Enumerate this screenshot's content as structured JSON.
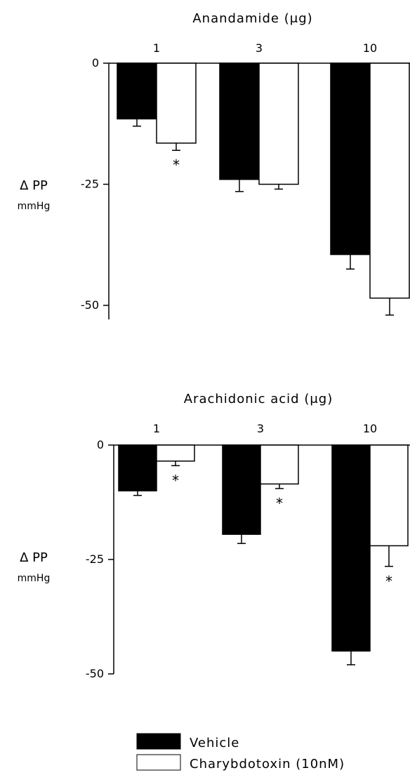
{
  "chart_data": [
    {
      "type": "bar",
      "title": "Anandamide (μg)",
      "ylabel": "Δ PP",
      "yunit": "mmHg",
      "categories": [
        "1",
        "3",
        "10"
      ],
      "ylim": [
        -50,
        0
      ],
      "yticks": [
        "0",
        "-25",
        "-50"
      ],
      "series": [
        {
          "name": "Vehicle",
          "color": "#000000",
          "values": [
            -11.5,
            -24,
            -39.5
          ],
          "errors": [
            1.5,
            2.5,
            3
          ]
        },
        {
          "name": "Charybdotoxin (10nM)",
          "color": "#ffffff",
          "values": [
            -16.5,
            -25,
            -48.5
          ],
          "errors": [
            1.5,
            1,
            3.5
          ]
        }
      ],
      "significance": [
        {
          "category": "1",
          "series": "Charybdotoxin (10nM)",
          "label": "*"
        }
      ]
    },
    {
      "type": "bar",
      "title": "Arachidonic acid (μg)",
      "ylabel": "Δ PP",
      "yunit": "mmHg",
      "categories": [
        "1",
        "3",
        "10"
      ],
      "ylim": [
        -50,
        0
      ],
      "yticks": [
        "0",
        "-25",
        "-50"
      ],
      "series": [
        {
          "name": "Vehicle",
          "color": "#000000",
          "values": [
            -10,
            -19.5,
            -45
          ],
          "errors": [
            1,
            2,
            3
          ]
        },
        {
          "name": "Charybdotoxin (10nM)",
          "color": "#ffffff",
          "values": [
            -3.5,
            -8.5,
            -22
          ],
          "errors": [
            1,
            1,
            4.5
          ]
        }
      ],
      "significance": [
        {
          "category": "1",
          "series": "Charybdotoxin (10nM)",
          "label": "*"
        },
        {
          "category": "3",
          "series": "Charybdotoxin (10nM)",
          "label": "*"
        },
        {
          "category": "10",
          "series": "Charybdotoxin (10nM)",
          "label": "*"
        }
      ]
    }
  ],
  "legend": {
    "items": [
      {
        "label": "Vehicle",
        "color": "#000000"
      },
      {
        "label": "Charybdotoxin (10nM)",
        "color": "#ffffff"
      }
    ]
  }
}
